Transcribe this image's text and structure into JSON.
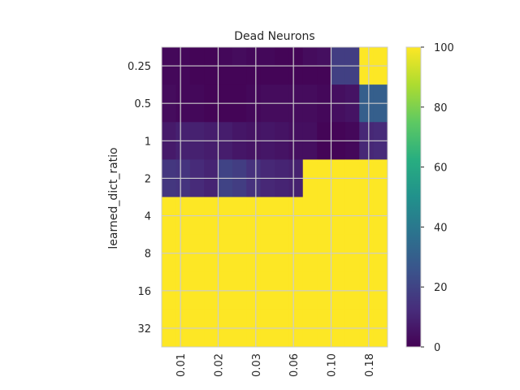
{
  "chart_data": {
    "type": "heatmap",
    "title": "Dead Neurons",
    "ylabel": "learned_dict_ratio",
    "xlabel": "",
    "x_categories": [
      "0.01",
      "0.02",
      "0.03",
      "0.06",
      "0.10",
      "0.18"
    ],
    "y_categories": [
      "0.25",
      "0.5",
      "1",
      "2",
      "4",
      "8",
      "16",
      "32"
    ],
    "colormap": "viridis",
    "vmin": 0,
    "vmax": 100,
    "colorbar_ticks": [
      "0",
      "20",
      "40",
      "60",
      "80",
      "100"
    ],
    "grid": true,
    "values": [
      [
        2,
        2,
        1,
        1,
        2,
        3,
        2,
        2,
        1,
        1,
        3,
        4,
        18,
        18,
        100,
        100
      ],
      [
        2,
        2,
        1,
        1,
        1,
        1,
        1,
        1,
        1,
        1,
        1,
        1,
        19,
        19,
        100,
        100
      ],
      [
        3,
        2,
        2,
        1,
        1,
        1,
        2,
        3,
        3,
        3,
        3,
        2,
        4,
        5,
        30,
        30
      ],
      [
        3,
        2,
        2,
        1,
        1,
        1,
        2,
        3,
        3,
        3,
        3,
        2,
        4,
        5,
        30,
        30
      ],
      [
        7,
        9,
        9,
        8,
        8,
        6,
        5,
        6,
        5,
        4,
        4,
        1,
        1,
        2,
        11,
        12
      ],
      [
        7,
        9,
        9,
        8,
        8,
        6,
        5,
        6,
        5,
        4,
        4,
        1,
        1,
        2,
        11,
        12
      ],
      [
        16,
        15,
        12,
        10,
        20,
        18,
        14,
        11,
        10,
        9,
        100,
        100,
        100,
        100,
        100,
        100
      ],
      [
        16,
        15,
        12,
        10,
        20,
        18,
        14,
        11,
        10,
        9,
        100,
        100,
        100,
        100,
        100,
        100
      ],
      [
        100,
        100,
        100,
        100,
        100,
        100,
        100,
        100,
        100,
        100,
        100,
        100,
        100,
        100,
        100,
        100
      ],
      [
        100,
        100,
        100,
        100,
        100,
        100,
        100,
        100,
        100,
        100,
        100,
        100,
        100,
        100,
        100,
        100
      ],
      [
        100,
        100,
        100,
        100,
        100,
        100,
        100,
        100,
        100,
        100,
        100,
        100,
        100,
        100,
        100,
        100
      ],
      [
        100,
        100,
        100,
        100,
        100,
        100,
        100,
        100,
        100,
        100,
        100,
        100,
        100,
        100,
        100,
        100
      ],
      [
        100,
        100,
        100,
        100,
        100,
        100,
        100,
        100,
        100,
        100,
        100,
        100,
        100,
        100,
        100,
        100
      ],
      [
        100,
        100,
        100,
        100,
        100,
        100,
        100,
        100,
        100,
        100,
        100,
        100,
        100,
        100,
        100,
        100
      ],
      [
        100,
        100,
        100,
        100,
        100,
        100,
        100,
        100,
        100,
        100,
        100,
        100,
        100,
        100,
        100,
        100
      ],
      [
        100,
        100,
        100,
        100,
        100,
        100,
        100,
        100,
        100,
        100,
        100,
        100,
        100,
        100,
        100,
        100
      ]
    ]
  }
}
